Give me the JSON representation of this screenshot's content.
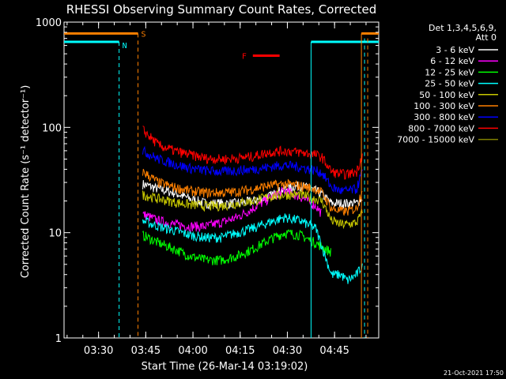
{
  "chart_data": {
    "type": "line",
    "title": "RHESSI Observing Summary Count Rates, Corrected",
    "xlabel": "Start Time (26-Mar-14 03:19:02)",
    "ylabel": "Corrected Count Rate (s⁻¹ detector⁻¹)",
    "yscale": "log",
    "ylim": [
      1,
      1000
    ],
    "xlim_minutes_after_start": [
      0,
      100
    ],
    "y_tick_labels": [
      "1",
      "10",
      "100",
      "1000"
    ],
    "x_tick_labels": [
      "03:30",
      "03:45",
      "04:00",
      "04:15",
      "04:30",
      "04:45"
    ],
    "x_tick_minutes": [
      10.97,
      25.97,
      40.97,
      55.97,
      70.97,
      85.97
    ],
    "legend": {
      "header_line1": "Det 1,3,4,5,6,9,",
      "header_line2": "Att 0",
      "placement": "right"
    },
    "timestamp": "21-Oct-2021 17:50",
    "annotations": {
      "saa_letter": "S",
      "night_letter": "N",
      "flare_letter": "F"
    },
    "series": [
      {
        "name": "3 - 6 keV",
        "color": "#ffffff",
        "x": [
          25,
          30,
          35,
          40,
          45,
          50,
          55,
          60,
          65,
          70,
          75,
          80,
          82,
          85,
          88,
          90,
          93,
          95
        ],
        "y": [
          29,
          26,
          24,
          21,
          19,
          19,
          19,
          20,
          22,
          26,
          28,
          25,
          23,
          19,
          19,
          19,
          19,
          22
        ]
      },
      {
        "name": "6 - 12 keV",
        "color": "#ff00ff",
        "x": [
          25,
          30,
          35,
          40,
          45,
          50,
          55,
          60,
          65,
          70,
          75,
          80,
          82
        ],
        "y": [
          15,
          13,
          12,
          11.5,
          11.5,
          12.5,
          14,
          17,
          21,
          25,
          22,
          18,
          15
        ]
      },
      {
        "name": "12 - 25 keV",
        "color": "#00ff00",
        "x": [
          25,
          30,
          35,
          40,
          45,
          50,
          55,
          60,
          65,
          70,
          75,
          80,
          85
        ],
        "y": [
          9.5,
          8.0,
          7.0,
          6.0,
          5.5,
          5.5,
          6.0,
          7.0,
          8.5,
          10,
          9.5,
          8.0,
          6.5
        ]
      },
      {
        "name": "25 - 50 keV",
        "color": "#00ffff",
        "x": [
          25,
          30,
          35,
          40,
          45,
          50,
          55,
          60,
          65,
          70,
          75,
          80,
          85,
          88,
          90,
          93,
          95
        ],
        "y": [
          13,
          11.5,
          10.5,
          9.5,
          9.0,
          9.0,
          10,
          11,
          12.5,
          14,
          13,
          11,
          4.0,
          4.0,
          3.5,
          4.0,
          5.0
        ]
      },
      {
        "name": "50 - 100 keV",
        "color": "#c8c800",
        "x": [
          25,
          30,
          35,
          40,
          45,
          50,
          55,
          60,
          65,
          70,
          75,
          80,
          82,
          85,
          88,
          90,
          93,
          95
        ],
        "y": [
          23,
          21,
          19.5,
          18.5,
          18,
          18,
          19,
          20,
          22,
          23,
          23,
          21,
          20,
          13,
          12,
          12,
          12.5,
          16
        ]
      },
      {
        "name": "100 - 300 keV",
        "color": "#ff8000",
        "x": [
          25,
          30,
          35,
          40,
          45,
          50,
          55,
          60,
          65,
          70,
          75,
          80,
          82,
          85,
          88,
          90,
          93,
          95
        ],
        "y": [
          38,
          30,
          27,
          25,
          24,
          24,
          24.5,
          26,
          28,
          29,
          28,
          26,
          24,
          17,
          16,
          16,
          17,
          28
        ]
      },
      {
        "name": "300 - 800 keV",
        "color": "#0000ff",
        "x": [
          25,
          30,
          35,
          40,
          45,
          50,
          55,
          60,
          65,
          70,
          75,
          80,
          82,
          85,
          88,
          90,
          93,
          95
        ],
        "y": [
          60,
          50,
          45,
          41,
          39,
          38,
          39,
          40,
          42,
          44,
          42,
          39,
          37,
          27,
          25,
          25,
          26,
          40
        ]
      },
      {
        "name": "800 - 7000 keV",
        "color": "#ff0000",
        "x": [
          25,
          30,
          35,
          40,
          45,
          50,
          55,
          60,
          65,
          70,
          75,
          80,
          82,
          85,
          88,
          90,
          93,
          95
        ],
        "y": [
          95,
          68,
          60,
          55,
          51,
          50,
          51,
          53,
          58,
          60,
          58,
          55,
          52,
          38,
          36,
          36,
          38,
          58
        ]
      },
      {
        "name": "7000 - 15000 keV",
        "color": "#808000",
        "x": [],
        "y": []
      }
    ]
  }
}
